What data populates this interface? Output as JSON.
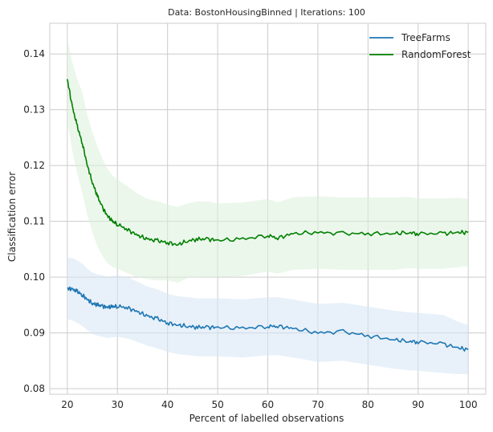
{
  "chart_data": {
    "type": "line",
    "title": "Data: BostonHousingBinned | Iterations: 100",
    "xlabel": "Percent of labelled observations",
    "ylabel": "Classification error",
    "xlim": [
      16.5,
      103.5
    ],
    "ylim": [
      0.079,
      0.1455
    ],
    "xticks": [
      20,
      30,
      40,
      50,
      60,
      70,
      80,
      90,
      100
    ],
    "yticks": [
      0.08,
      0.09,
      0.1,
      0.11,
      0.12,
      0.13,
      0.14
    ],
    "xtick_labels": [
      "20",
      "30",
      "40",
      "50",
      "60",
      "70",
      "80",
      "90",
      "100"
    ],
    "ytick_labels": [
      "0.08",
      "0.09",
      "0.10",
      "0.11",
      "0.12",
      "0.13",
      "0.14"
    ],
    "grid": true,
    "legend_position": "top-right",
    "x": [
      20,
      21,
      22,
      23,
      24,
      25,
      26,
      27,
      28,
      29,
      30,
      32,
      34,
      36,
      38,
      40,
      42,
      44,
      46,
      48,
      50,
      55,
      60,
      62,
      65,
      70,
      75,
      80,
      85,
      88,
      90,
      95,
      98,
      100
    ],
    "series": [
      {
        "name": "TreeFarms",
        "color": "#1f77b4",
        "band_color": "#d6e6f4",
        "values": [
          0.098,
          0.0978,
          0.0974,
          0.0968,
          0.096,
          0.0953,
          0.095,
          0.0948,
          0.0946,
          0.0947,
          0.0948,
          0.0945,
          0.0938,
          0.093,
          0.0925,
          0.0918,
          0.0914,
          0.0912,
          0.091,
          0.091,
          0.091,
          0.0908,
          0.0912,
          0.0912,
          0.0908,
          0.09,
          0.0902,
          0.0895,
          0.0888,
          0.0885,
          0.0884,
          0.088,
          0.0873,
          0.087
        ],
        "lower": [
          0.0925,
          0.0922,
          0.0918,
          0.0912,
          0.0905,
          0.0898,
          0.0895,
          0.0893,
          0.0891,
          0.0892,
          0.0893,
          0.089,
          0.0884,
          0.0877,
          0.0872,
          0.0866,
          0.0862,
          0.086,
          0.0858,
          0.0858,
          0.0858,
          0.0856,
          0.086,
          0.086,
          0.0856,
          0.0848,
          0.085,
          0.0843,
          0.0836,
          0.0833,
          0.0832,
          0.0828,
          0.0826,
          0.0826
        ],
        "upper": [
          0.1035,
          0.1034,
          0.103,
          0.1024,
          0.1015,
          0.1008,
          0.1005,
          0.1003,
          0.1001,
          0.1002,
          0.1003,
          0.1,
          0.0992,
          0.0983,
          0.0978,
          0.097,
          0.0966,
          0.0964,
          0.0962,
          0.0962,
          0.0962,
          0.096,
          0.0964,
          0.0964,
          0.096,
          0.0952,
          0.0954,
          0.0947,
          0.094,
          0.0937,
          0.0936,
          0.0932,
          0.092,
          0.0914
        ]
      },
      {
        "name": "RandomForest",
        "color": "#008000",
        "band_color": "#dcf0dc",
        "values": [
          0.1355,
          0.1305,
          0.127,
          0.124,
          0.12,
          0.117,
          0.1145,
          0.1125,
          0.111,
          0.11,
          0.1095,
          0.1085,
          0.1075,
          0.1068,
          0.1065,
          0.1062,
          0.1058,
          0.1065,
          0.1068,
          0.1068,
          0.1066,
          0.1068,
          0.1075,
          0.107,
          0.1078,
          0.108,
          0.1078,
          0.1078,
          0.1078,
          0.108,
          0.1078,
          0.1078,
          0.108,
          0.108
        ],
        "lower": [
          0.128,
          0.1225,
          0.1185,
          0.115,
          0.111,
          0.108,
          0.1055,
          0.1038,
          0.1025,
          0.1018,
          0.1015,
          0.1007,
          0.1,
          0.0996,
          0.0994,
          0.0994,
          0.099,
          0.0998,
          0.1,
          0.1,
          0.1,
          0.1002,
          0.101,
          0.1006,
          0.1013,
          0.1015,
          0.1013,
          0.1013,
          0.1013,
          0.1016,
          0.1015,
          0.1015,
          0.1018,
          0.102
        ],
        "upper": [
          0.143,
          0.1385,
          0.1355,
          0.133,
          0.129,
          0.126,
          0.1235,
          0.1212,
          0.1195,
          0.1182,
          0.1175,
          0.1163,
          0.115,
          0.114,
          0.1136,
          0.113,
          0.1126,
          0.1132,
          0.1136,
          0.1136,
          0.1132,
          0.1134,
          0.114,
          0.1134,
          0.1143,
          0.1145,
          0.1143,
          0.1143,
          0.1143,
          0.1144,
          0.1141,
          0.1141,
          0.1142,
          0.114
        ]
      }
    ]
  }
}
